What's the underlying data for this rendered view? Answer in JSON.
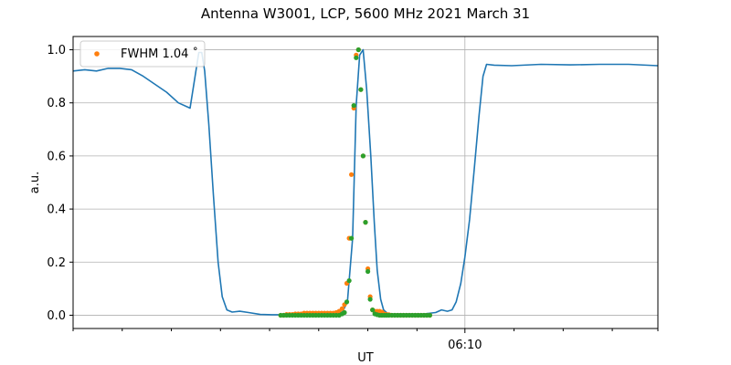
{
  "chart_data": {
    "type": "line",
    "title": "Antenna W3001, LCP, 5600 MHz 2021 March 31",
    "xlabel": "UT",
    "ylabel": "a.u.",
    "xlim": [
      0,
      100
    ],
    "ylim": [
      -0.05,
      1.05
    ],
    "yticks": [
      0.0,
      0.2,
      0.4,
      0.6,
      0.8,
      1.0
    ],
    "ytick_labels": [
      "0.0",
      "0.2",
      "0.4",
      "0.6",
      "0.8",
      "1.0"
    ],
    "xticks_major": [
      {
        "x": 67,
        "label": "06:10"
      }
    ],
    "xticks_minor": [
      0,
      8.4,
      16.8,
      25.2,
      33.6,
      42.0,
      50.4,
      58.8,
      75.4,
      83.8,
      92.2,
      100
    ],
    "grid": true,
    "legend": {
      "position": "top-left",
      "entries": [
        {
          "label": "FWHM 1.04$^\\circ$",
          "display": "FWHM 1.04 ˚",
          "color": "#ff7f0e",
          "marker": "point"
        }
      ]
    },
    "series": [
      {
        "kind": "line",
        "color": "#1f77b4",
        "x": [
          0,
          2,
          4,
          6,
          8,
          10,
          12,
          14,
          16,
          18,
          20,
          21.5,
          22.0,
          22.5,
          23.2,
          24.0,
          24.8,
          25.5,
          26.3,
          27.2,
          28.5,
          30,
          32,
          34,
          36,
          38,
          40,
          42,
          44,
          46,
          46.9,
          47.8,
          48.4,
          49.0,
          49.6,
          50.2,
          50.9,
          51.5,
          52.0,
          52.6,
          53.1,
          53.7,
          54.5,
          56,
          58,
          60,
          62,
          63,
          64,
          64.8,
          65.5,
          66.3,
          67.0,
          67.8,
          68.6,
          69.4,
          70.1,
          70.7,
          72,
          75,
          80,
          85,
          90,
          95,
          100
        ],
        "y": [
          0.92,
          0.925,
          0.92,
          0.93,
          0.93,
          0.925,
          0.9,
          0.87,
          0.84,
          0.8,
          0.78,
          0.99,
          0.99,
          0.92,
          0.72,
          0.45,
          0.2,
          0.07,
          0.02,
          0.012,
          0.015,
          0.01,
          0.003,
          0.002,
          0.002,
          0.002,
          0.003,
          0.004,
          0.006,
          0.01,
          0.05,
          0.29,
          0.79,
          0.98,
          1.0,
          0.85,
          0.6,
          0.35,
          0.17,
          0.06,
          0.02,
          0.008,
          0.005,
          0.005,
          0.005,
          0.005,
          0.01,
          0.02,
          0.015,
          0.02,
          0.05,
          0.12,
          0.22,
          0.36,
          0.55,
          0.75,
          0.9,
          0.945,
          0.942,
          0.94,
          0.945,
          0.943,
          0.945,
          0.945,
          0.94
        ]
      },
      {
        "kind": "scatter",
        "color": "#ff7f0e",
        "x": [
          35.5,
          36.0,
          36.5,
          37.0,
          37.5,
          38.0,
          38.5,
          39.0,
          39.5,
          40.0,
          40.5,
          41.0,
          41.5,
          42.0,
          42.5,
          43.0,
          43.5,
          44.0,
          44.5,
          45.0,
          45.5,
          46.0,
          46.4,
          46.8,
          47.2,
          47.6,
          48.0,
          48.4,
          48.8,
          49.2,
          49.6,
          50.0,
          50.4,
          50.8,
          51.2,
          51.6,
          52.0,
          52.4,
          52.8,
          53.2,
          53.6,
          54.0,
          54.5,
          55.0,
          55.5,
          56.0,
          56.5,
          57.0,
          57.5,
          58.0,
          58.5,
          59.0,
          59.5,
          60.0,
          60.5,
          61.0
        ],
        "y": [
          0.0,
          0.0,
          0.003,
          0.003,
          0.003,
          0.005,
          0.005,
          0.005,
          0.008,
          0.008,
          0.008,
          0.008,
          0.008,
          0.008,
          0.008,
          0.008,
          0.008,
          0.008,
          0.008,
          0.01,
          0.015,
          0.025,
          0.04,
          0.12,
          0.29,
          0.53,
          0.78,
          0.98,
          1.0,
          0.85,
          0.6,
          0.35,
          0.175,
          0.07,
          0.02,
          0.015,
          0.015,
          0.015,
          0.012,
          0.005,
          0.003,
          0.002,
          0.0,
          0.0,
          0.0,
          0.0,
          0.0,
          0.0,
          0.0,
          0.0,
          0.0,
          0.0,
          0.0,
          0.0,
          0.0,
          0.0
        ]
      },
      {
        "kind": "scatter",
        "color": "#2ca02c",
        "x": [
          35.5,
          36.0,
          36.5,
          37.0,
          37.5,
          38.0,
          38.5,
          39.0,
          39.5,
          40.0,
          40.5,
          41.0,
          41.5,
          42.0,
          42.5,
          43.0,
          43.5,
          44.0,
          44.5,
          45.0,
          45.5,
          46.0,
          46.4,
          46.8,
          47.2,
          47.6,
          48.0,
          48.4,
          48.8,
          49.2,
          49.6,
          50.0,
          50.4,
          50.8,
          51.2,
          51.6,
          52.0,
          52.4,
          52.8,
          53.2,
          53.6,
          54.0,
          54.5,
          55.0,
          55.5,
          56.0,
          56.5,
          57.0,
          57.5,
          58.0,
          58.5,
          59.0,
          59.5,
          60.0,
          60.5,
          61.0
        ],
        "y": [
          0.0,
          0.0,
          0.0,
          0.0,
          0.0,
          0.0,
          0.0,
          0.0,
          0.0,
          0.0,
          0.0,
          0.0,
          0.0,
          0.0,
          0.0,
          0.0,
          0.0,
          0.0,
          0.0,
          0.0,
          0.0,
          0.005,
          0.01,
          0.05,
          0.13,
          0.29,
          0.79,
          0.97,
          1.0,
          0.85,
          0.6,
          0.35,
          0.165,
          0.06,
          0.02,
          0.005,
          0.002,
          0.0,
          0.0,
          0.0,
          0.0,
          0.0,
          0.0,
          0.0,
          0.0,
          0.0,
          0.0,
          0.0,
          0.0,
          0.0,
          0.0,
          0.0,
          0.0,
          0.0,
          0.0,
          0.0
        ]
      }
    ]
  }
}
